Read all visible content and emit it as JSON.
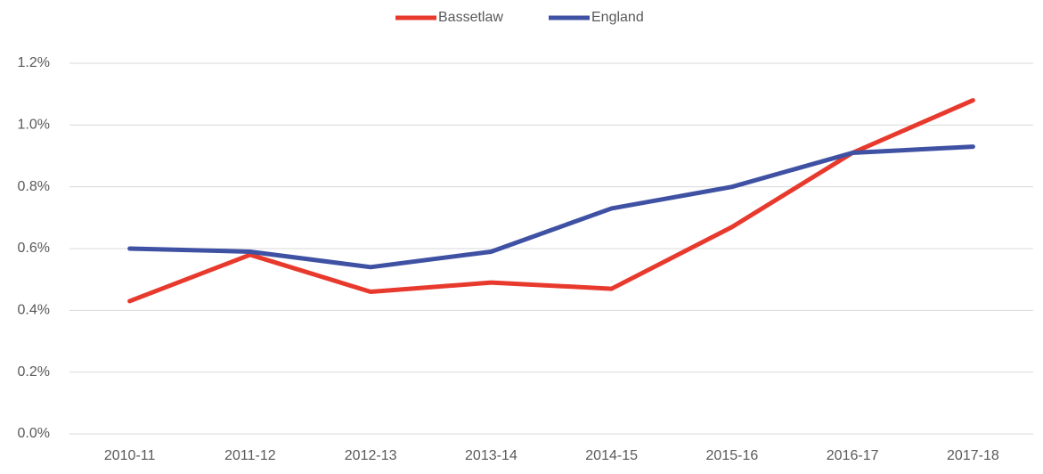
{
  "chart_data": {
    "type": "line",
    "categories": [
      "2010-11",
      "2011-12",
      "2012-13",
      "2013-14",
      "2014-15",
      "2015-16",
      "2016-17",
      "2017-18"
    ],
    "series": [
      {
        "name": "Bassetlaw",
        "color": "#e8392d",
        "values": [
          0.43,
          0.58,
          0.46,
          0.49,
          0.47,
          0.67,
          0.91,
          1.08
        ]
      },
      {
        "name": "England",
        "color": "#3f51a3",
        "values": [
          0.6,
          0.59,
          0.54,
          0.59,
          0.73,
          0.8,
          0.91,
          0.93
        ]
      }
    ],
    "ylim": [
      0,
      1.2
    ],
    "yticks": [
      {
        "value": 0,
        "label": "0.0%"
      },
      {
        "value": 0.2,
        "label": "0.2%"
      },
      {
        "value": 0.4,
        "label": "0.4%"
      },
      {
        "value": 0.6,
        "label": "0.6%"
      },
      {
        "value": 0.8,
        "label": "0.8%"
      },
      {
        "value": 1.0,
        "label": "1.0%"
      },
      {
        "value": 1.2,
        "label": "1.2%"
      }
    ],
    "grid": true,
    "legend": "top"
  }
}
